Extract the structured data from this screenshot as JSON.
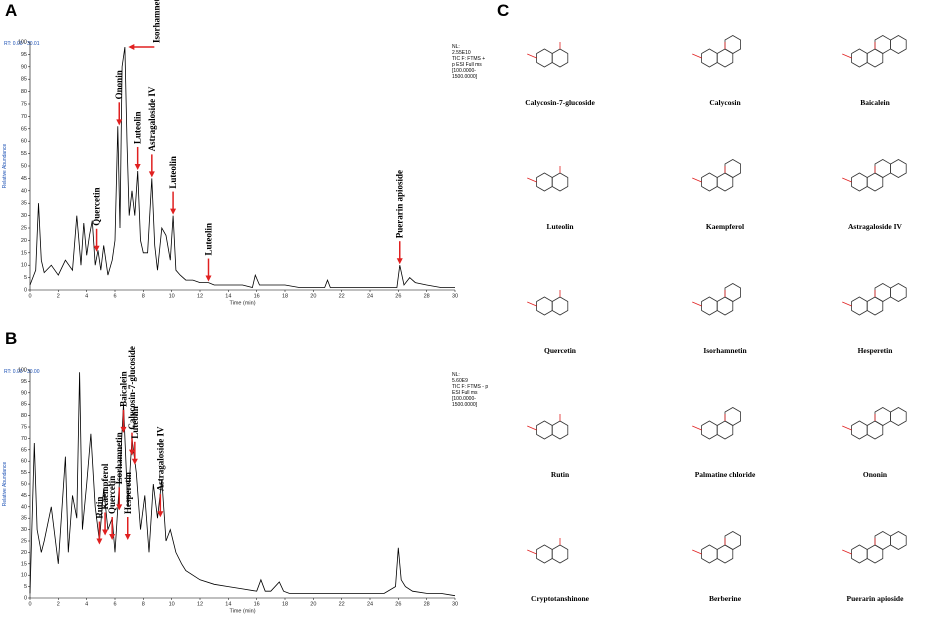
{
  "chart_data": [
    {
      "type": "line",
      "panel": "A",
      "rt_label": "RT: 0.00 - 30.01",
      "nl_lines": [
        "NL:",
        "2.55E10",
        "TIC F: FTMS +",
        "p ESI Full ms",
        "[100.0000-",
        "1500.0000]"
      ],
      "xlabel": "Time (min)",
      "ylabel": "Relative Abundance",
      "color": "#000000",
      "annotation_color": "#e02020",
      "xlim": [
        0,
        30
      ],
      "xticks": [
        0,
        2,
        4,
        6,
        8,
        10,
        12,
        14,
        16,
        18,
        20,
        22,
        24,
        26,
        28,
        30
      ],
      "ylim": [
        0,
        100
      ],
      "yticks": [
        0,
        5,
        10,
        15,
        20,
        25,
        30,
        35,
        40,
        45,
        50,
        55,
        60,
        65,
        70,
        75,
        80,
        85,
        90,
        95,
        100
      ],
      "x": [
        0,
        0.4,
        0.6,
        0.8,
        1.0,
        1.5,
        2.0,
        2.5,
        3.0,
        3.3,
        3.6,
        3.8,
        4.0,
        4.2,
        4.4,
        4.6,
        4.8,
        5.0,
        5.2,
        5.5,
        5.8,
        6.0,
        6.2,
        6.35,
        6.5,
        6.7,
        6.85,
        7.0,
        7.2,
        7.4,
        7.6,
        7.8,
        8.0,
        8.3,
        8.6,
        8.8,
        9.0,
        9.3,
        9.6,
        9.9,
        10.1,
        10.3,
        10.6,
        11,
        11.5,
        12,
        12.6,
        13,
        14,
        15,
        15.7,
        15.9,
        16.2,
        17,
        18,
        19,
        20.8,
        21,
        21.2,
        22,
        23,
        24,
        25,
        25.9,
        26.1,
        26.4,
        26.8,
        27.2,
        28,
        29,
        30
      ],
      "values": [
        2,
        8,
        35,
        12,
        7,
        10,
        6,
        12,
        8,
        30,
        10,
        27,
        14,
        22,
        28,
        10,
        16,
        8,
        18,
        6,
        12,
        20,
        66,
        25,
        90,
        98,
        60,
        30,
        40,
        30,
        48,
        20,
        15,
        15,
        45,
        18,
        8,
        25,
        22,
        12,
        30,
        8,
        6,
        4,
        4,
        3,
        3,
        2,
        2,
        2,
        1,
        6,
        2,
        2,
        2,
        1,
        1,
        4,
        1,
        1,
        1,
        1,
        1,
        1,
        10,
        2,
        5,
        3,
        2,
        1,
        1
      ],
      "annotations": [
        {
          "label": "Quercetin",
          "x": 4.7,
          "y": 15
        },
        {
          "label": "Ononin",
          "x": 6.3,
          "y": 66
        },
        {
          "label": "Isorhamnetin",
          "x": 6.8,
          "y": 98
        },
        {
          "label": "Luteolin",
          "x": 7.6,
          "y": 48
        },
        {
          "label": "Astragaloside IV",
          "x": 8.6,
          "y": 45
        },
        {
          "label": "Luteolin",
          "x": 10.1,
          "y": 30
        },
        {
          "label": "Luteolin",
          "x": 12.6,
          "y": 3
        },
        {
          "label": "Puerarin apioside",
          "x": 26.1,
          "y": 10
        }
      ]
    },
    {
      "type": "line",
      "panel": "B",
      "rt_label": "RT: 0.00 - 30.00",
      "nl_lines": [
        "NL:",
        "5.60E9",
        "TIC F: FTMS - p",
        "ESI Full ms",
        "[100.0000-",
        "1500.0000]"
      ],
      "xlabel": "Time (min)",
      "ylabel": "Relative Abundance",
      "color": "#000000",
      "annotation_color": "#e02020",
      "xlim": [
        0,
        30
      ],
      "xticks": [
        0,
        2,
        4,
        6,
        8,
        10,
        12,
        14,
        16,
        18,
        20,
        22,
        24,
        26,
        28,
        30
      ],
      "ylim": [
        0,
        100
      ],
      "yticks": [
        0,
        5,
        10,
        15,
        20,
        25,
        30,
        35,
        40,
        45,
        50,
        55,
        60,
        65,
        70,
        75,
        80,
        85,
        90,
        95,
        100
      ],
      "x": [
        0,
        0.3,
        0.5,
        0.8,
        1.0,
        1.5,
        2.0,
        2.5,
        2.7,
        3.0,
        3.3,
        3.5,
        3.7,
        4.0,
        4.3,
        4.6,
        4.9,
        5.2,
        5.5,
        5.8,
        6.0,
        6.3,
        6.6,
        6.9,
        7.2,
        7.5,
        7.8,
        8.1,
        8.4,
        8.7,
        9.0,
        9.3,
        9.6,
        9.9,
        10.3,
        10.7,
        11,
        11.5,
        12,
        13,
        14,
        15,
        16,
        16.3,
        16.6,
        17,
        17.6,
        17.9,
        18.3,
        19,
        20,
        22,
        24,
        25,
        25.8,
        26.0,
        26.2,
        26.5,
        27,
        28,
        29,
        30
      ],
      "values": [
        2,
        68,
        30,
        20,
        25,
        40,
        15,
        62,
        20,
        45,
        35,
        99,
        30,
        50,
        72,
        40,
        25,
        48,
        30,
        35,
        20,
        50,
        85,
        40,
        70,
        55,
        30,
        45,
        20,
        50,
        35,
        52,
        25,
        30,
        20,
        15,
        12,
        10,
        8,
        6,
        5,
        4,
        3,
        8,
        3,
        3,
        7,
        3,
        2,
        2,
        2,
        2,
        2,
        2,
        5,
        22,
        8,
        5,
        3,
        2,
        2,
        1
      ],
      "annotations": [
        {
          "label": "Rutin",
          "x": 4.9,
          "y": 23
        },
        {
          "label": "Kaempferol",
          "x": 5.3,
          "y": 27
        },
        {
          "label": "Quercetin",
          "x": 5.8,
          "y": 25
        },
        {
          "label": "Isorhamnetin",
          "x": 6.3,
          "y": 38
        },
        {
          "label": "Baicalein",
          "x": 6.6,
          "y": 72
        },
        {
          "label": "Calycosin-7-glucoside",
          "x": 7.2,
          "y": 62
        },
        {
          "label": "Luteolin",
          "x": 7.4,
          "y": 58
        },
        {
          "label": "Hesperetin",
          "x": 6.9,
          "y": 25
        },
        {
          "label": "Astragaloside IV",
          "x": 9.2,
          "y": 35
        }
      ]
    }
  ],
  "structures": {
    "panel": "C",
    "names": [
      "Calycosin-7-glucoside",
      "Calycosin",
      "Baicalein",
      "Luteolin",
      "Kaempferol",
      "Astragaloside IV",
      "Quercetin",
      "Isorhamnetin",
      "Hesperetin",
      "Rutin",
      "Palmatine chloride",
      "Ononin",
      "Cryptotanshinone",
      "Berberine",
      "Puerarin apioside"
    ]
  }
}
